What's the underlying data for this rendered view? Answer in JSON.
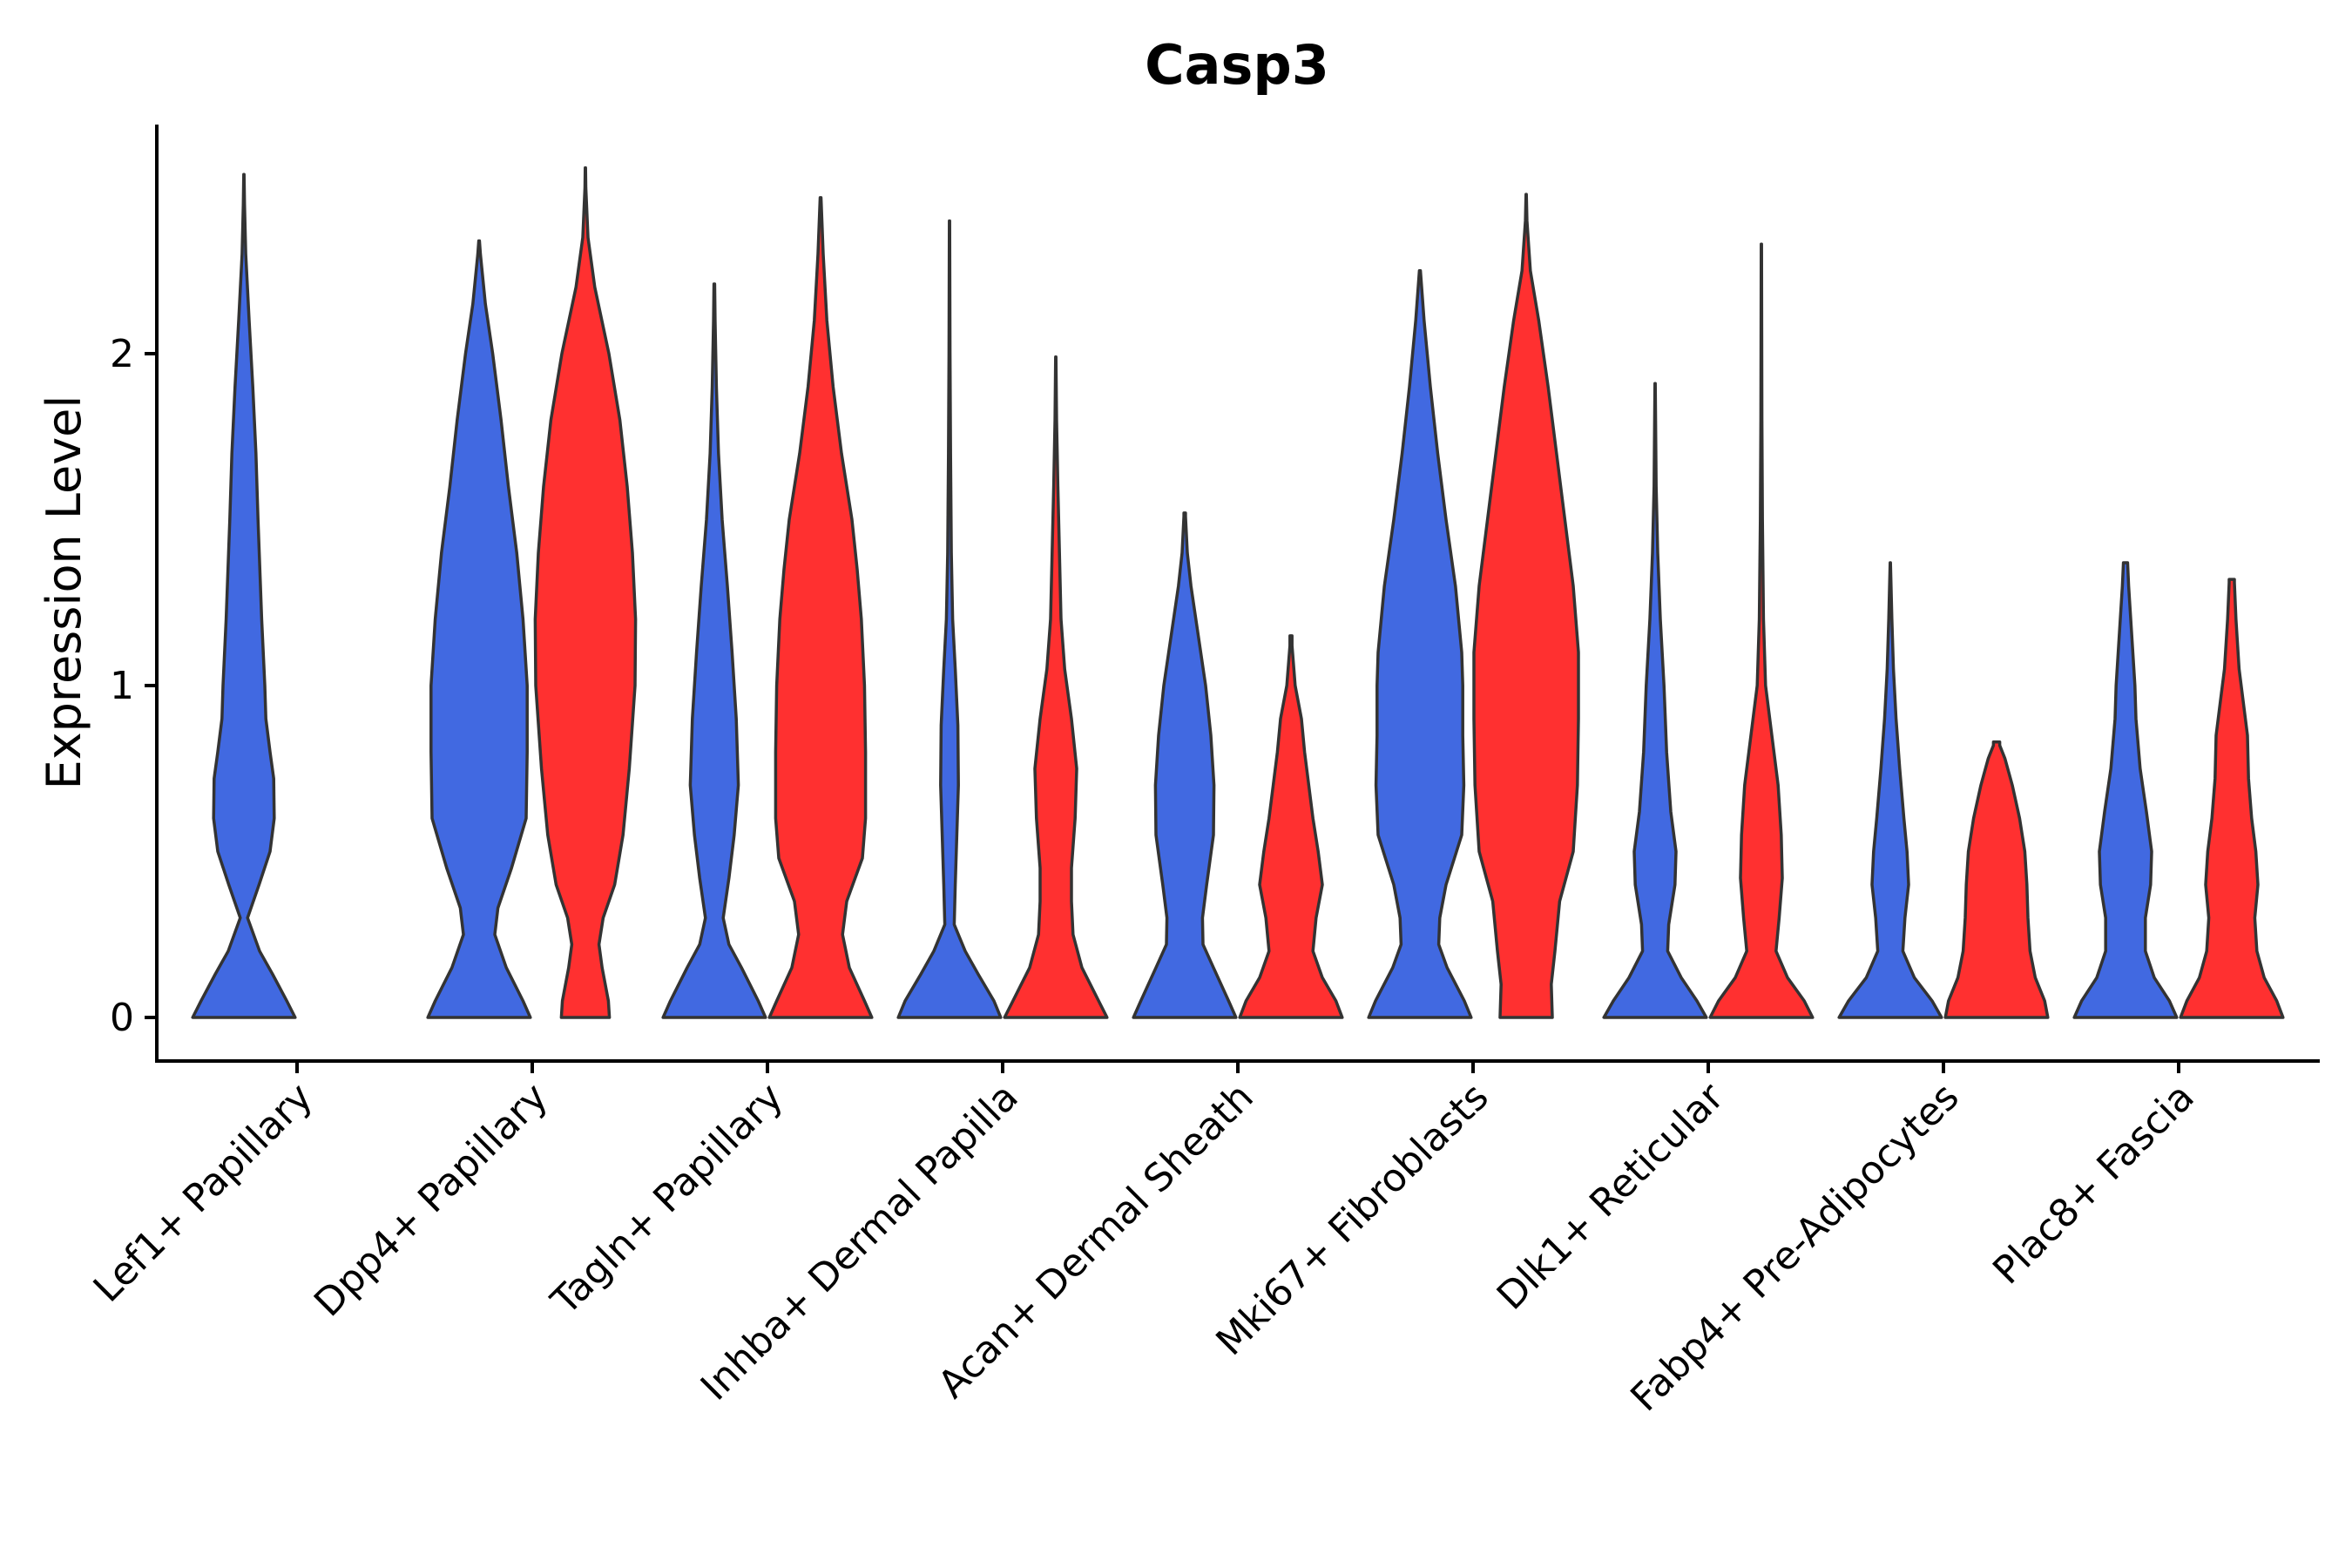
{
  "chart_data": {
    "type": "violin",
    "title": "Casp3",
    "xlabel": "",
    "ylabel": "Expression Level",
    "ylim": [
      -0.13,
      2.7
    ],
    "yticks": [
      0,
      1,
      2
    ],
    "categories": [
      "Lef1+ Papillary",
      "Dpp4+ Papillary",
      "Tagln+ Papillary",
      "Inhba+ Dermal Papilla",
      "Acan+ Dermal Sheath",
      "Mki67+ Fibroblasts",
      "Dlk1+ Reticular",
      "Fabp4+ Pre-Adipocytes",
      "Plac8+ Fascia"
    ],
    "colors": {
      "group1": "#4169E1",
      "group2": "#FF3030"
    },
    "violins": [
      {
        "category": "Lef1+ Papillary",
        "group": "group1",
        "max": 2.54,
        "profile": [
          [
            0,
            0.98
          ],
          [
            0.05,
            0.82
          ],
          [
            0.13,
            0.55
          ],
          [
            0.2,
            0.3
          ],
          [
            0.3,
            0.07
          ],
          [
            0.4,
            0.29
          ],
          [
            0.5,
            0.5
          ],
          [
            0.6,
            0.58
          ],
          [
            0.72,
            0.57
          ],
          [
            0.8,
            0.5
          ],
          [
            0.9,
            0.42
          ],
          [
            1.0,
            0.4
          ],
          [
            1.2,
            0.34
          ],
          [
            1.5,
            0.27
          ],
          [
            1.7,
            0.23
          ],
          [
            1.9,
            0.17
          ],
          [
            2.1,
            0.1
          ],
          [
            2.3,
            0.035
          ],
          [
            2.45,
            0.012
          ],
          [
            2.54,
            0.004
          ]
        ]
      },
      {
        "category": "Dpp4+ Papillary",
        "group": "group1",
        "max": 2.34,
        "profile": [
          [
            0,
            0.98
          ],
          [
            0.05,
            0.84
          ],
          [
            0.15,
            0.52
          ],
          [
            0.25,
            0.3
          ],
          [
            0.33,
            0.36
          ],
          [
            0.45,
            0.62
          ],
          [
            0.6,
            0.9
          ],
          [
            0.8,
            0.92
          ],
          [
            1.0,
            0.92
          ],
          [
            1.2,
            0.84
          ],
          [
            1.4,
            0.72
          ],
          [
            1.6,
            0.56
          ],
          [
            1.8,
            0.42
          ],
          [
            2.0,
            0.26
          ],
          [
            2.15,
            0.12
          ],
          [
            2.3,
            0.025
          ],
          [
            2.34,
            0.006
          ]
        ]
      },
      {
        "category": "Dpp4+ Papillary",
        "group": "group2",
        "max": 2.56,
        "profile": [
          [
            0,
            0.46
          ],
          [
            0.05,
            0.44
          ],
          [
            0.15,
            0.32
          ],
          [
            0.22,
            0.26
          ],
          [
            0.3,
            0.34
          ],
          [
            0.4,
            0.56
          ],
          [
            0.55,
            0.72
          ],
          [
            0.75,
            0.84
          ],
          [
            1.0,
            0.95
          ],
          [
            1.2,
            0.96
          ],
          [
            1.4,
            0.9
          ],
          [
            1.6,
            0.8
          ],
          [
            1.8,
            0.66
          ],
          [
            2.0,
            0.45
          ],
          [
            2.2,
            0.18
          ],
          [
            2.35,
            0.05
          ],
          [
            2.5,
            0.008
          ],
          [
            2.56,
            0.004
          ]
        ]
      },
      {
        "category": "Tagln+ Papillary",
        "group": "group1",
        "max": 2.21,
        "profile": [
          [
            0,
            0.98
          ],
          [
            0.05,
            0.84
          ],
          [
            0.15,
            0.52
          ],
          [
            0.22,
            0.28
          ],
          [
            0.3,
            0.17
          ],
          [
            0.42,
            0.28
          ],
          [
            0.55,
            0.38
          ],
          [
            0.7,
            0.46
          ],
          [
            0.9,
            0.42
          ],
          [
            1.1,
            0.34
          ],
          [
            1.3,
            0.25
          ],
          [
            1.5,
            0.15
          ],
          [
            1.7,
            0.08
          ],
          [
            1.9,
            0.04
          ],
          [
            2.1,
            0.015
          ],
          [
            2.21,
            0.006
          ]
        ]
      },
      {
        "category": "Tagln+ Papillary",
        "group": "group2",
        "max": 2.47,
        "profile": [
          [
            0,
            0.98
          ],
          [
            0.05,
            0.84
          ],
          [
            0.15,
            0.55
          ],
          [
            0.25,
            0.42
          ],
          [
            0.35,
            0.5
          ],
          [
            0.48,
            0.8
          ],
          [
            0.6,
            0.86
          ],
          [
            0.8,
            0.86
          ],
          [
            1.0,
            0.84
          ],
          [
            1.2,
            0.78
          ],
          [
            1.35,
            0.7
          ],
          [
            1.5,
            0.6
          ],
          [
            1.7,
            0.4
          ],
          [
            1.9,
            0.24
          ],
          [
            2.1,
            0.12
          ],
          [
            2.3,
            0.05
          ],
          [
            2.47,
            0.008
          ]
        ]
      },
      {
        "category": "Inhba+ Dermal Papilla",
        "group": "group1",
        "max": 2.4,
        "profile": [
          [
            0,
            0.98
          ],
          [
            0.05,
            0.85
          ],
          [
            0.13,
            0.55
          ],
          [
            0.2,
            0.3
          ],
          [
            0.28,
            0.09
          ],
          [
            0.4,
            0.11
          ],
          [
            0.55,
            0.14
          ],
          [
            0.7,
            0.17
          ],
          [
            0.88,
            0.16
          ],
          [
            1.05,
            0.11
          ],
          [
            1.2,
            0.06
          ],
          [
            1.4,
            0.035
          ],
          [
            1.7,
            0.02
          ],
          [
            2.0,
            0.01
          ],
          [
            2.4,
            0.004
          ]
        ]
      },
      {
        "category": "Inhba+ Dermal Papilla",
        "group": "group2",
        "max": 1.99,
        "profile": [
          [
            0,
            0.98
          ],
          [
            0.05,
            0.82
          ],
          [
            0.15,
            0.5
          ],
          [
            0.25,
            0.33
          ],
          [
            0.35,
            0.3
          ],
          [
            0.45,
            0.3
          ],
          [
            0.6,
            0.37
          ],
          [
            0.75,
            0.4
          ],
          [
            0.9,
            0.3
          ],
          [
            1.05,
            0.17
          ],
          [
            1.2,
            0.1
          ],
          [
            1.4,
            0.07
          ],
          [
            1.6,
            0.04
          ],
          [
            1.8,
            0.015
          ],
          [
            1.99,
            0.004
          ]
        ]
      },
      {
        "category": "Acan+ Dermal Sheath",
        "group": "group1",
        "max": 1.52,
        "profile": [
          [
            0,
            0.98
          ],
          [
            0.05,
            0.84
          ],
          [
            0.15,
            0.55
          ],
          [
            0.22,
            0.35
          ],
          [
            0.3,
            0.34
          ],
          [
            0.4,
            0.42
          ],
          [
            0.55,
            0.55
          ],
          [
            0.7,
            0.56
          ],
          [
            0.85,
            0.5
          ],
          [
            1.0,
            0.4
          ],
          [
            1.15,
            0.26
          ],
          [
            1.3,
            0.12
          ],
          [
            1.4,
            0.05
          ],
          [
            1.51,
            0.015
          ],
          [
            1.52,
            0.015
          ]
        ]
      },
      {
        "category": "Acan+ Dermal Sheath",
        "group": "group2",
        "max": 1.15,
        "profile": [
          [
            0,
            0.98
          ],
          [
            0.05,
            0.86
          ],
          [
            0.12,
            0.6
          ],
          [
            0.2,
            0.42
          ],
          [
            0.3,
            0.48
          ],
          [
            0.4,
            0.6
          ],
          [
            0.5,
            0.52
          ],
          [
            0.6,
            0.42
          ],
          [
            0.7,
            0.34
          ],
          [
            0.8,
            0.26
          ],
          [
            0.9,
            0.2
          ],
          [
            1.0,
            0.08
          ],
          [
            1.12,
            0.02
          ],
          [
            1.15,
            0.02
          ]
        ]
      },
      {
        "category": "Mki67+ Fibroblasts",
        "group": "group1",
        "max": 2.25,
        "profile": [
          [
            0,
            0.98
          ],
          [
            0.05,
            0.85
          ],
          [
            0.15,
            0.52
          ],
          [
            0.22,
            0.36
          ],
          [
            0.3,
            0.38
          ],
          [
            0.4,
            0.5
          ],
          [
            0.55,
            0.8
          ],
          [
            0.7,
            0.84
          ],
          [
            0.85,
            0.82
          ],
          [
            1.0,
            0.82
          ],
          [
            1.1,
            0.8
          ],
          [
            1.3,
            0.68
          ],
          [
            1.5,
            0.5
          ],
          [
            1.7,
            0.34
          ],
          [
            1.9,
            0.2
          ],
          [
            2.1,
            0.08
          ],
          [
            2.25,
            0.01
          ]
        ]
      },
      {
        "category": "Mki67+ Fibroblasts",
        "group": "group2",
        "max": 2.48,
        "profile": [
          [
            0,
            0.5
          ],
          [
            0.1,
            0.48
          ],
          [
            0.2,
            0.55
          ],
          [
            0.35,
            0.64
          ],
          [
            0.5,
            0.9
          ],
          [
            0.7,
            0.98
          ],
          [
            0.9,
            1.0
          ],
          [
            1.1,
            1.0
          ],
          [
            1.3,
            0.9
          ],
          [
            1.5,
            0.74
          ],
          [
            1.7,
            0.58
          ],
          [
            1.9,
            0.42
          ],
          [
            2.1,
            0.24
          ],
          [
            2.25,
            0.08
          ],
          [
            2.4,
            0.015
          ],
          [
            2.48,
            0.004
          ]
        ]
      },
      {
        "category": "Dlk1+ Reticular",
        "group": "group1",
        "max": 1.91,
        "profile": [
          [
            0,
            0.98
          ],
          [
            0.05,
            0.8
          ],
          [
            0.12,
            0.5
          ],
          [
            0.2,
            0.24
          ],
          [
            0.28,
            0.26
          ],
          [
            0.4,
            0.38
          ],
          [
            0.5,
            0.4
          ],
          [
            0.62,
            0.3
          ],
          [
            0.8,
            0.22
          ],
          [
            1.0,
            0.17
          ],
          [
            1.2,
            0.1
          ],
          [
            1.4,
            0.05
          ],
          [
            1.6,
            0.02
          ],
          [
            1.91,
            0.004
          ]
        ]
      },
      {
        "category": "Dlk1+ Reticular",
        "group": "group2",
        "max": 2.33,
        "profile": [
          [
            0,
            0.98
          ],
          [
            0.05,
            0.82
          ],
          [
            0.12,
            0.5
          ],
          [
            0.2,
            0.28
          ],
          [
            0.3,
            0.34
          ],
          [
            0.42,
            0.4
          ],
          [
            0.55,
            0.38
          ],
          [
            0.7,
            0.32
          ],
          [
            0.85,
            0.2
          ],
          [
            1.0,
            0.08
          ],
          [
            1.2,
            0.04
          ],
          [
            1.5,
            0.02
          ],
          [
            1.8,
            0.01
          ],
          [
            2.33,
            0.004
          ]
        ]
      },
      {
        "category": "Fabp4+ Pre-Adipocytes",
        "group": "group1",
        "max": 1.37,
        "profile": [
          [
            0,
            0.98
          ],
          [
            0.05,
            0.8
          ],
          [
            0.12,
            0.46
          ],
          [
            0.2,
            0.24
          ],
          [
            0.3,
            0.28
          ],
          [
            0.4,
            0.35
          ],
          [
            0.5,
            0.32
          ],
          [
            0.6,
            0.26
          ],
          [
            0.75,
            0.18
          ],
          [
            0.9,
            0.11
          ],
          [
            1.05,
            0.06
          ],
          [
            1.2,
            0.03
          ],
          [
            1.37,
            0.004
          ]
        ]
      },
      {
        "category": "Fabp4+ Pre-Adipocytes",
        "group": "group2",
        "max": 0.83,
        "profile": [
          [
            0,
            0.98
          ],
          [
            0.05,
            0.92
          ],
          [
            0.12,
            0.74
          ],
          [
            0.2,
            0.64
          ],
          [
            0.3,
            0.6
          ],
          [
            0.4,
            0.58
          ],
          [
            0.5,
            0.54
          ],
          [
            0.6,
            0.44
          ],
          [
            0.7,
            0.3
          ],
          [
            0.78,
            0.16
          ],
          [
            0.82,
            0.06
          ],
          [
            0.83,
            0.06
          ]
        ]
      },
      {
        "category": "Plac8+ Fascia",
        "group": "group1",
        "max": 1.37,
        "profile": [
          [
            0,
            0.98
          ],
          [
            0.05,
            0.84
          ],
          [
            0.12,
            0.55
          ],
          [
            0.2,
            0.38
          ],
          [
            0.3,
            0.38
          ],
          [
            0.4,
            0.48
          ],
          [
            0.5,
            0.5
          ],
          [
            0.62,
            0.4
          ],
          [
            0.75,
            0.28
          ],
          [
            0.9,
            0.2
          ],
          [
            1.0,
            0.18
          ],
          [
            1.1,
            0.14
          ],
          [
            1.2,
            0.1
          ],
          [
            1.3,
            0.06
          ],
          [
            1.37,
            0.04
          ]
        ]
      },
      {
        "category": "Plac8+ Fascia",
        "group": "group2",
        "max": 1.32,
        "profile": [
          [
            0,
            0.98
          ],
          [
            0.05,
            0.86
          ],
          [
            0.12,
            0.62
          ],
          [
            0.2,
            0.48
          ],
          [
            0.3,
            0.44
          ],
          [
            0.4,
            0.5
          ],
          [
            0.5,
            0.46
          ],
          [
            0.6,
            0.38
          ],
          [
            0.72,
            0.32
          ],
          [
            0.85,
            0.3
          ],
          [
            0.95,
            0.22
          ],
          [
            1.05,
            0.14
          ],
          [
            1.2,
            0.08
          ],
          [
            1.31,
            0.05
          ],
          [
            1.32,
            0.05
          ]
        ]
      }
    ]
  }
}
